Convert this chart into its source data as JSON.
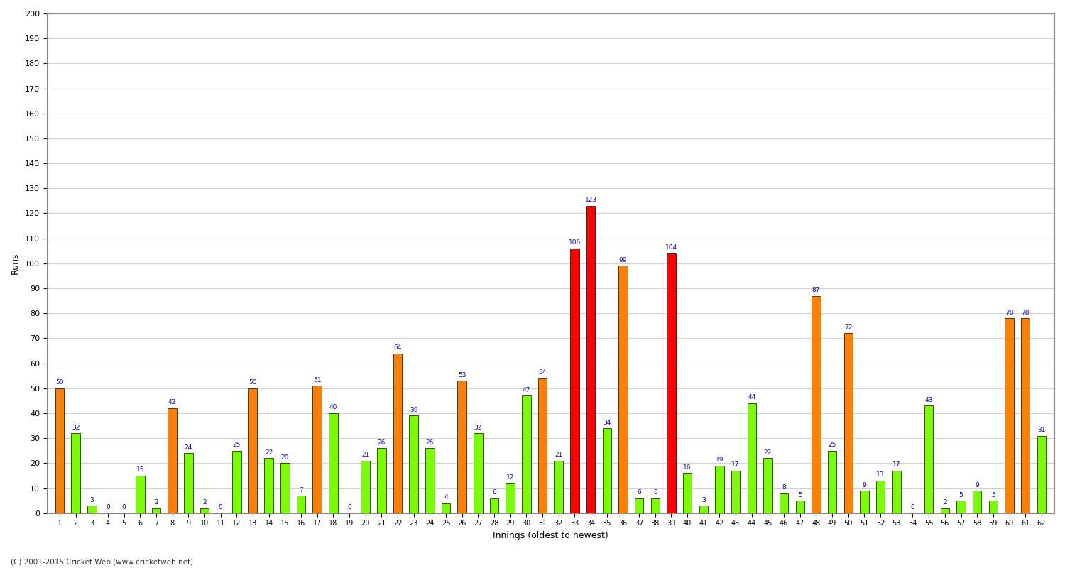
{
  "title": "",
  "xlabel": "Innings (oldest to newest)",
  "ylabel": "Runs",
  "ylim": [
    0,
    200
  ],
  "yticks": [
    0,
    10,
    20,
    30,
    40,
    50,
    60,
    70,
    80,
    90,
    100,
    110,
    120,
    130,
    140,
    150,
    160,
    170,
    180,
    190,
    200
  ],
  "innings": [
    1,
    2,
    3,
    4,
    5,
    6,
    7,
    8,
    9,
    10,
    11,
    12,
    13,
    14,
    15,
    16,
    17,
    18,
    19,
    20,
    21,
    22,
    23,
    24,
    25,
    26,
    27,
    28,
    29,
    30,
    31,
    32,
    33,
    34,
    35,
    36,
    37,
    38,
    39,
    40,
    41,
    42,
    43,
    44,
    45,
    46,
    47,
    48,
    49,
    50,
    51,
    52,
    53,
    54,
    55,
    56,
    57,
    58,
    59,
    60,
    61,
    62
  ],
  "values": [
    50,
    32,
    3,
    0,
    0,
    15,
    2,
    42,
    24,
    2,
    0,
    25,
    50,
    22,
    20,
    7,
    51,
    40,
    0,
    21,
    26,
    64,
    39,
    26,
    4,
    53,
    32,
    6,
    12,
    47,
    54,
    21,
    106,
    123,
    34,
    99,
    6,
    6,
    104,
    16,
    3,
    19,
    17,
    44,
    22,
    8,
    5,
    87,
    25,
    72,
    9,
    13,
    17,
    0,
    43,
    2,
    5,
    9,
    5,
    78,
    78,
    31
  ],
  "colors": [
    "#ff8000",
    "#7cfc00",
    "#7cfc00",
    "#7cfc00",
    "#7cfc00",
    "#7cfc00",
    "#7cfc00",
    "#ff8000",
    "#7cfc00",
    "#7cfc00",
    "#7cfc00",
    "#7cfc00",
    "#ff8000",
    "#7cfc00",
    "#7cfc00",
    "#7cfc00",
    "#ff8000",
    "#7cfc00",
    "#7cfc00",
    "#7cfc00",
    "#7cfc00",
    "#ff8000",
    "#7cfc00",
    "#7cfc00",
    "#7cfc00",
    "#ff8000",
    "#7cfc00",
    "#7cfc00",
    "#7cfc00",
    "#7cfc00",
    "#ff8000",
    "#7cfc00",
    "#ff0000",
    "#ff0000",
    "#7cfc00",
    "#ff8000",
    "#7cfc00",
    "#7cfc00",
    "#ff0000",
    "#7cfc00",
    "#7cfc00",
    "#7cfc00",
    "#7cfc00",
    "#7cfc00",
    "#7cfc00",
    "#7cfc00",
    "#7cfc00",
    "#ff8000",
    "#7cfc00",
    "#ff8000",
    "#7cfc00",
    "#7cfc00",
    "#7cfc00",
    "#7cfc00",
    "#7cfc00",
    "#7cfc00",
    "#7cfc00",
    "#7cfc00",
    "#7cfc00",
    "#ff8000",
    "#ff8000",
    "#7cfc00"
  ],
  "background_color": "#ffffff",
  "grid_color": "#d0d0d0",
  "bar_edge_color": "#000000",
  "label_color": "#0000cd",
  "axis_label_color": "#000000",
  "footer": "(C) 2001-2015 Cricket Web (www.cricketweb.net)"
}
